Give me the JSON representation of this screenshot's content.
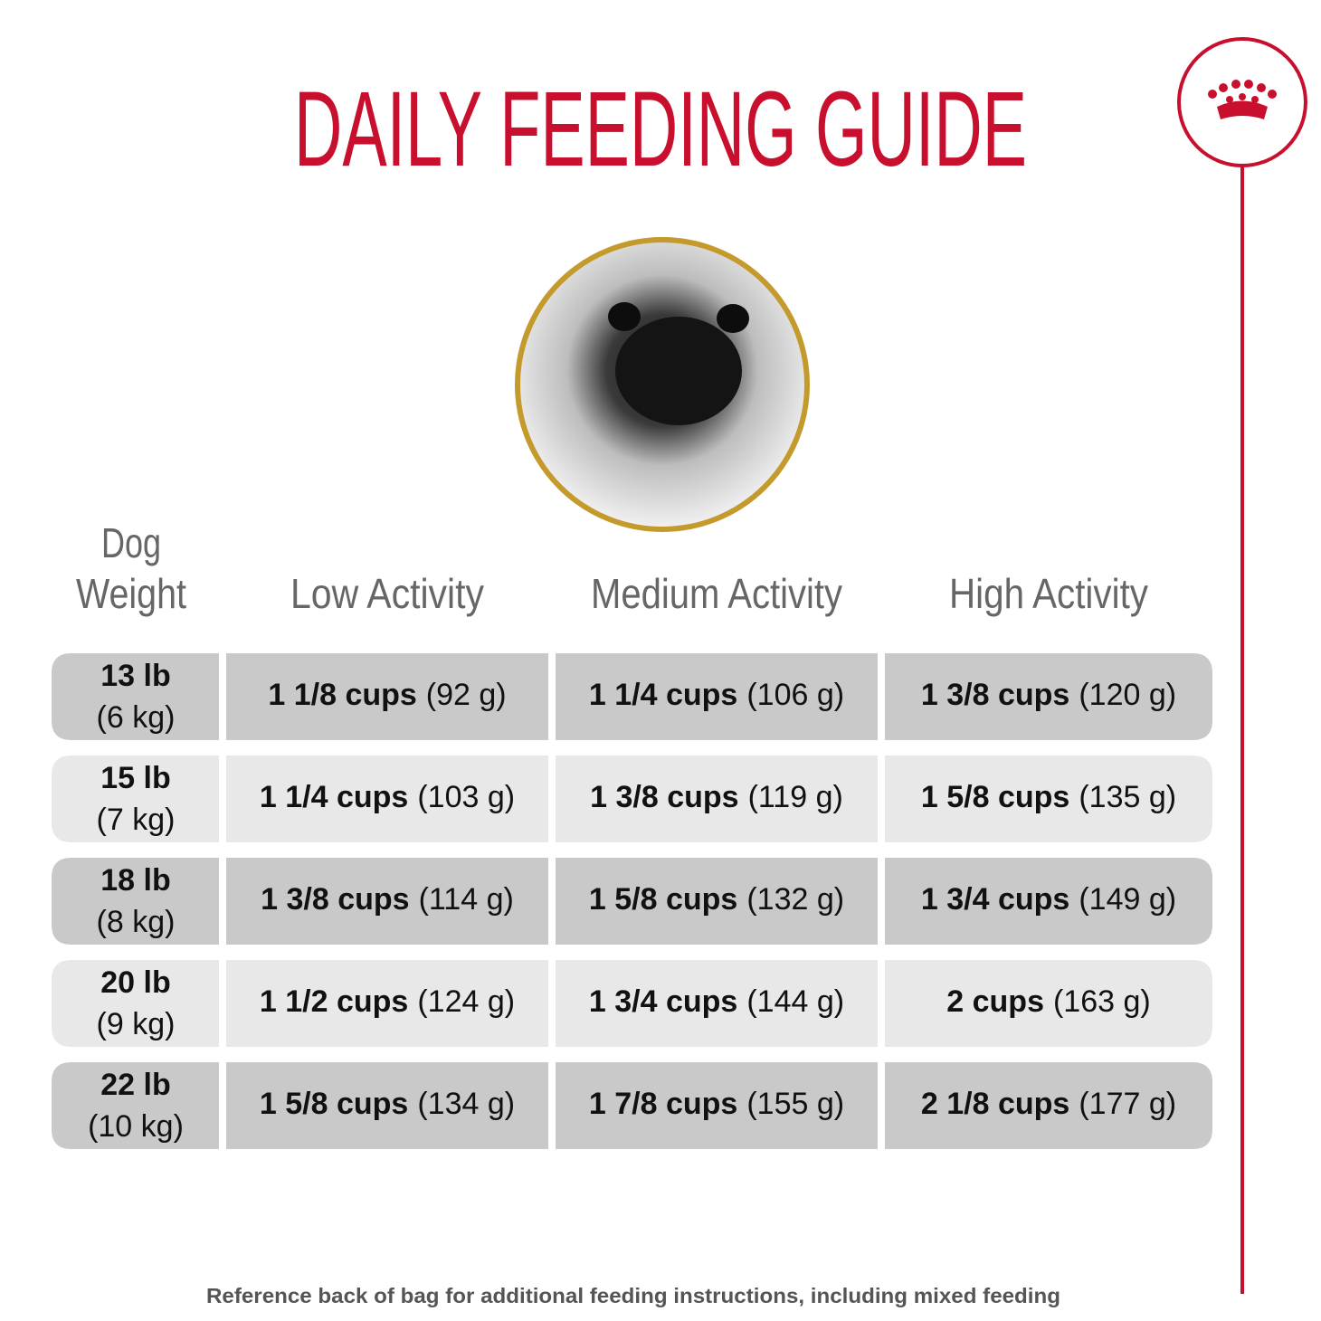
{
  "header": {
    "title": "DAILY FEEDING GUIDE"
  },
  "table": {
    "columns": [
      "Dog",
      "Weight",
      "Low Activity",
      "Medium Activity",
      "High Activity"
    ],
    "rows": [
      {
        "weight": "13 lb",
        "metric": "(6 kg)",
        "cells": [
          [
            "1 1/8 cups",
            "(92 g)"
          ],
          [
            "1 1/4 cups",
            "(106 g)"
          ],
          [
            "1 3/8 cups",
            "(120 g)"
          ]
        ]
      },
      {
        "weight": "15 lb",
        "metric": "(7 kg)",
        "cells": [
          [
            "1 1/4 cups",
            "(103 g)"
          ],
          [
            "1 3/8 cups",
            "(119 g)"
          ],
          [
            "1 5/8 cups",
            "(135 g)"
          ]
        ]
      },
      {
        "weight": "18 lb",
        "metric": "(8 kg)",
        "cells": [
          [
            "1 3/8 cups",
            "(114 g)"
          ],
          [
            "1 5/8 cups",
            "(132 g)"
          ],
          [
            "1 3/4 cups",
            "(149 g)"
          ]
        ]
      },
      {
        "weight": "20 lb",
        "metric": "(9 kg)",
        "cells": [
          [
            "1 1/2 cups",
            "(124 g)"
          ],
          [
            "1 3/4 cups",
            "(144 g)"
          ],
          [
            "2 cups",
            "(163 g)"
          ]
        ]
      },
      {
        "weight": "22 lb",
        "metric": "(10 kg)",
        "cells": [
          [
            "1 5/8 cups",
            "(134 g)"
          ],
          [
            "1 7/8 cups",
            "(155 g)"
          ],
          [
            "2 1/8 cups",
            "(177 g)"
          ]
        ]
      }
    ]
  },
  "footer": {
    "note": "Reference back of bag for additional feeding instructions, including mixed feeding"
  }
}
